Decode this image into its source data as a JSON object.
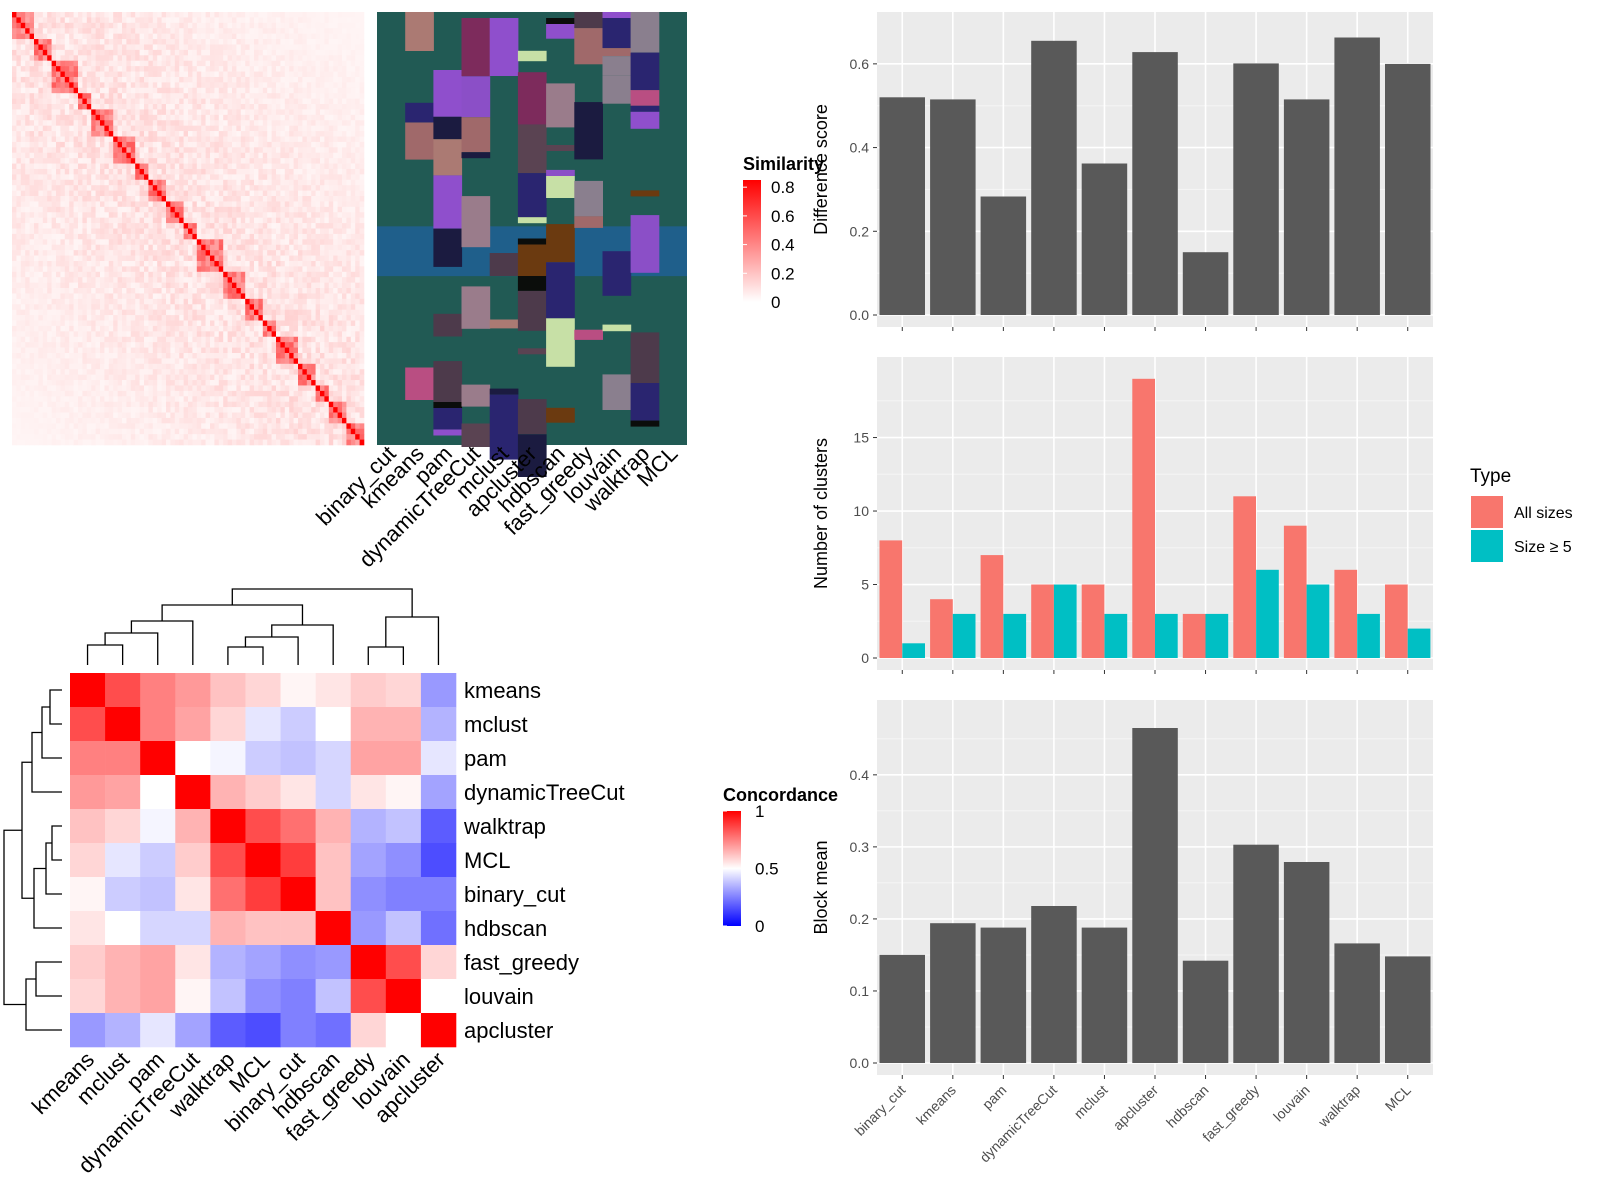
{
  "methods": [
    "binary_cut",
    "kmeans",
    "pam",
    "dynamicTreeCut",
    "mclust",
    "apcluster",
    "hdbscan",
    "fast_greedy",
    "louvain",
    "walktrap",
    "MCL"
  ],
  "similarity_heatmap": {
    "legend_title": "Similarity",
    "legend_ticks": [
      "0.8",
      "0.6",
      "0.4",
      "0.2",
      "0"
    ],
    "colors": {
      "low": "#ffffff",
      "high": "#ff0000"
    }
  },
  "cluster_panel": {
    "columns": [
      "binary_cut",
      "kmeans",
      "pam",
      "dynamicTreeCut",
      "mclust",
      "apcluster",
      "hdbscan",
      "fast_greedy",
      "louvain",
      "walktrap",
      "MCL"
    ],
    "base_color": "#215a54",
    "accent_color": "#1f5f8b"
  },
  "concordance_heatmap": {
    "legend_title": "Concordance",
    "legend_ticks": [
      "1",
      "0.5",
      "0"
    ],
    "row_order": [
      "kmeans",
      "mclust",
      "pam",
      "dynamicTreeCut",
      "walktrap",
      "MCL",
      "binary_cut",
      "hdbscan",
      "fast_greedy",
      "louvain",
      "apcluster"
    ],
    "col_order": [
      "kmeans",
      "mclust",
      "pam",
      "dynamicTreeCut",
      "walktrap",
      "MCL",
      "binary_cut",
      "hdbscan",
      "fast_greedy",
      "louvain",
      "apcluster"
    ],
    "matrix": [
      [
        1.0,
        0.85,
        0.75,
        0.7,
        0.62,
        0.58,
        0.52,
        0.55,
        0.6,
        0.58,
        0.3
      ],
      [
        0.85,
        1.0,
        0.75,
        0.68,
        0.58,
        0.45,
        0.4,
        0.5,
        0.65,
        0.65,
        0.35
      ],
      [
        0.75,
        0.75,
        1.0,
        0.5,
        0.48,
        0.4,
        0.38,
        0.42,
        0.68,
        0.68,
        0.45
      ],
      [
        0.7,
        0.68,
        0.5,
        1.0,
        0.65,
        0.6,
        0.55,
        0.42,
        0.55,
        0.52,
        0.32
      ],
      [
        0.62,
        0.58,
        0.48,
        0.65,
        1.0,
        0.85,
        0.78,
        0.65,
        0.35,
        0.38,
        0.18
      ],
      [
        0.58,
        0.45,
        0.4,
        0.6,
        0.85,
        1.0,
        0.88,
        0.62,
        0.32,
        0.28,
        0.15
      ],
      [
        0.52,
        0.4,
        0.38,
        0.55,
        0.78,
        0.88,
        1.0,
        0.62,
        0.28,
        0.25,
        0.25
      ],
      [
        0.55,
        0.5,
        0.42,
        0.42,
        0.65,
        0.62,
        0.62,
        1.0,
        0.3,
        0.38,
        0.22
      ],
      [
        0.6,
        0.65,
        0.68,
        0.55,
        0.35,
        0.32,
        0.28,
        0.3,
        1.0,
        0.85,
        0.58
      ],
      [
        0.58,
        0.65,
        0.68,
        0.52,
        0.38,
        0.28,
        0.25,
        0.38,
        0.85,
        1.0,
        0.5
      ],
      [
        0.3,
        0.35,
        0.45,
        0.32,
        0.18,
        0.15,
        0.25,
        0.22,
        0.58,
        0.5,
        1.0
      ]
    ],
    "colors": {
      "low": "#0000ff",
      "mid": "#ffffff",
      "high": "#ff0000"
    }
  },
  "chart_data": [
    {
      "type": "bar",
      "categories": [
        "binary_cut",
        "kmeans",
        "pam",
        "dynamicTreeCut",
        "mclust",
        "apcluster",
        "hdbscan",
        "fast_greedy",
        "louvain",
        "walktrap",
        "MCL"
      ],
      "values": [
        0.52,
        0.515,
        0.283,
        0.655,
        0.362,
        0.628,
        0.15,
        0.601,
        0.515,
        0.663,
        0.6
      ],
      "ylabel": "Difference score",
      "ylim": [
        0,
        0.7
      ],
      "yticks": [
        "0.0",
        "0.2",
        "0.4",
        "0.6"
      ],
      "ytick_values": [
        0,
        0.2,
        0.4,
        0.6
      ],
      "bar_color": "#595959",
      "panel_bg": "#ebebeb",
      "grid": true
    },
    {
      "type": "bar",
      "categories": [
        "binary_cut",
        "kmeans",
        "pam",
        "dynamicTreeCut",
        "mclust",
        "apcluster",
        "hdbscan",
        "fast_greedy",
        "louvain",
        "walktrap",
        "MCL"
      ],
      "series": [
        {
          "name": "All sizes",
          "values": [
            8,
            4,
            7,
            5,
            5,
            19,
            3,
            11,
            9,
            6,
            5
          ],
          "color": "#f8766d"
        },
        {
          "name": "Size ≥ 5",
          "values": [
            1,
            3,
            3,
            5,
            3,
            3,
            3,
            6,
            5,
            3,
            2
          ],
          "color": "#00bfc4"
        }
      ],
      "ylabel": "Number of clusters",
      "ylim": [
        0,
        19.8
      ],
      "yticks": [
        "0",
        "5",
        "10",
        "15"
      ],
      "ytick_values": [
        0,
        5,
        10,
        15
      ],
      "legend_title": "Type",
      "legend_position": "right",
      "panel_bg": "#ebebeb",
      "grid": true
    },
    {
      "type": "bar",
      "categories": [
        "binary_cut",
        "kmeans",
        "pam",
        "dynamicTreeCut",
        "mclust",
        "apcluster",
        "hdbscan",
        "fast_greedy",
        "louvain",
        "walktrap",
        "MCL"
      ],
      "values": [
        0.15,
        0.194,
        0.188,
        0.218,
        0.188,
        0.465,
        0.142,
        0.303,
        0.279,
        0.166,
        0.148
      ],
      "ylabel": "Block mean",
      "ylim": [
        0,
        0.49
      ],
      "yticks": [
        "0.0",
        "0.1",
        "0.2",
        "0.3",
        "0.4"
      ],
      "ytick_values": [
        0,
        0.1,
        0.2,
        0.3,
        0.4
      ],
      "bar_color": "#595959",
      "panel_bg": "#ebebeb",
      "grid": true
    }
  ]
}
